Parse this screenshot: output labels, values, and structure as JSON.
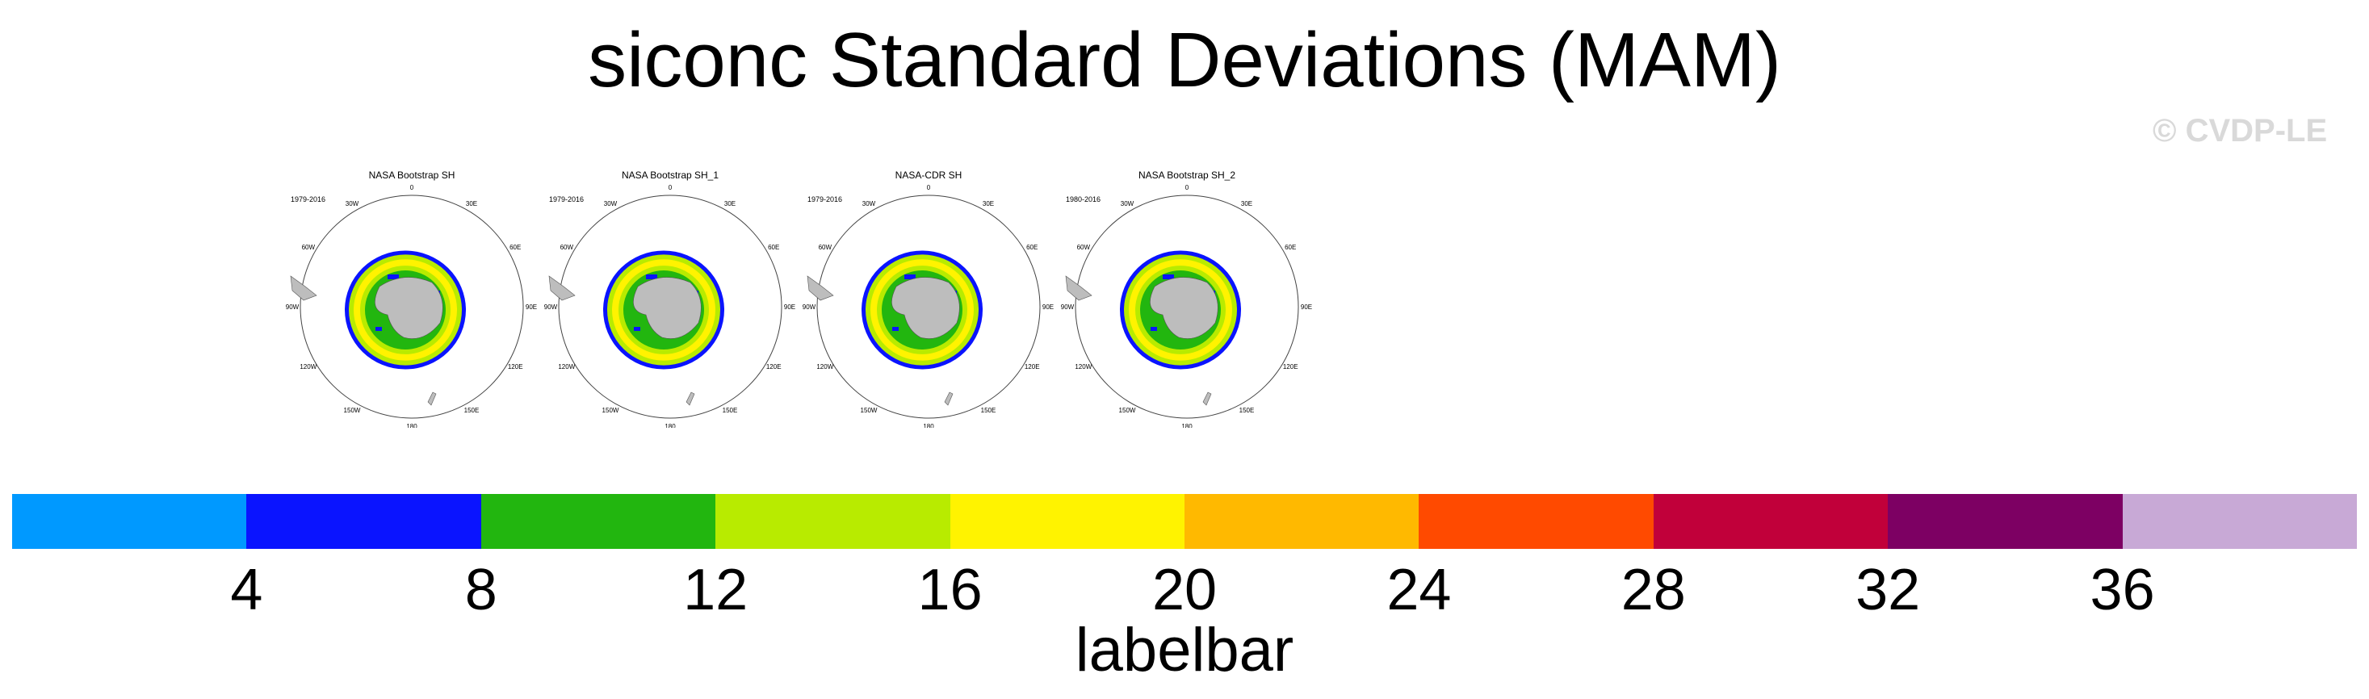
{
  "title": "siconc Standard Deviations (MAM)",
  "watermark": "© CVDP-LE",
  "panels": [
    {
      "title": "NASA Bootstrap SH",
      "years": "1979-2016"
    },
    {
      "title": "NASA Bootstrap SH_1",
      "years": "1979-2016"
    },
    {
      "title": "NASA-CDR SH",
      "years": "1979-2016"
    },
    {
      "title": "NASA Bootstrap SH_2",
      "years": "1980-2016"
    }
  ],
  "map_ticks": {
    "t0": "0",
    "t30e": "30E",
    "t60e": "60E",
    "t90e": "90E",
    "t120e": "120E",
    "t150e": "150E",
    "t180": "180",
    "t150w": "150W",
    "t120w": "120W",
    "t90w": "90W",
    "t60w": "60W",
    "t30w": "30W"
  },
  "labelbar": {
    "title": "labelbar",
    "labels": [
      "4",
      "8",
      "12",
      "16",
      "20",
      "24",
      "28",
      "32",
      "36"
    ],
    "colors": [
      "#0099ff",
      "#0a14ff",
      "#22b60f",
      "#b8eb00",
      "#fff300",
      "#ffb900",
      "#ff4a00",
      "#c1003a",
      "#7d0063",
      "#c8a9d6"
    ]
  }
}
